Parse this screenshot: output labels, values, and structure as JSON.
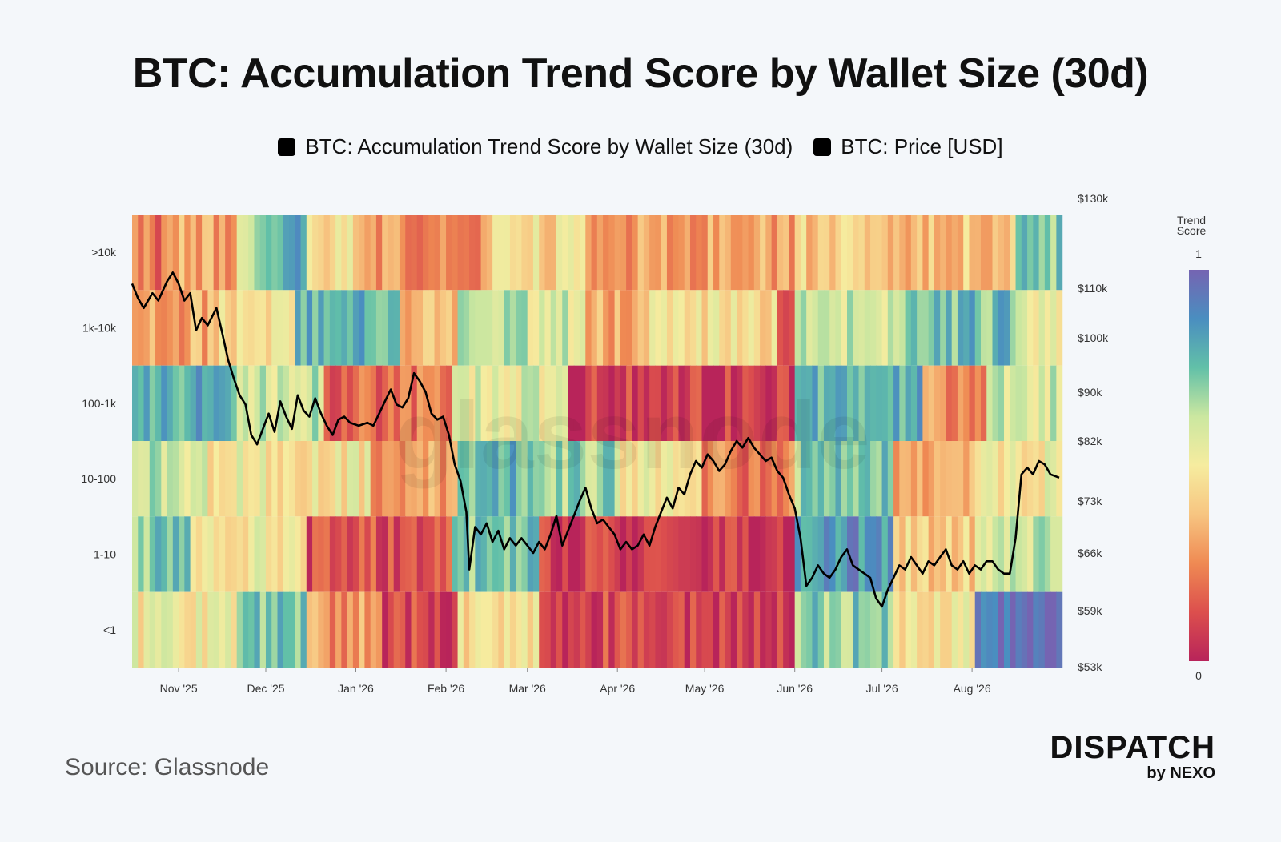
{
  "title": "BTC: Accumulation Trend Score by Wallet Size (30d)",
  "legend": [
    {
      "label": "BTC: Accumulation Trend Score by Wallet Size (30d)",
      "color": "#000000"
    },
    {
      "label": "BTC: Price [USD]",
      "color": "#000000"
    }
  ],
  "watermark": "glassnode",
  "source": "Source: Glassnode",
  "brand": {
    "main": "DISPATCH",
    "sub": "by NEXO"
  },
  "chart_data": {
    "type": "heatmap",
    "rows": [
      ">10k",
      "1k-10k",
      "100-1k",
      "10-100",
      "1-10",
      "<1"
    ],
    "x_ticks": [
      "Nov '25",
      "Dec '25",
      "Jan '26",
      "Feb '26",
      "Mar '26",
      "Apr '26",
      "May '26",
      "Jun '26",
      "Jul '26",
      "Aug '26"
    ],
    "start_date": "2025-10-16",
    "end_date": "2026-08-31",
    "right_axis": {
      "label": "BTC: Price [USD]",
      "ticks": [
        {
          "label": "$130k",
          "value": 130000
        },
        {
          "label": "$110k",
          "value": 110000
        },
        {
          "label": "$100k",
          "value": 100000
        },
        {
          "label": "$90k",
          "value": 90000
        },
        {
          "label": "$82k",
          "value": 82000
        },
        {
          "label": "$73k",
          "value": 73000
        },
        {
          "label": "$66k",
          "value": 66000
        },
        {
          "label": "$59k",
          "value": 59000
        },
        {
          "label": "$53k",
          "value": 53000
        }
      ]
    },
    "colorbar": {
      "title": [
        "Trend",
        "Score"
      ],
      "max_label": "1",
      "min_label": "0",
      "range": [
        0,
        1
      ]
    },
    "colorscale": [
      "#b8245a",
      "#dc4f4d",
      "#ef8a53",
      "#f7c581",
      "#f6ec9f",
      "#cbe7a0",
      "#62c0a8",
      "#4a8ec0",
      "#7564b2"
    ],
    "score_segments": [
      [
        {
          "from": "2025-10-16",
          "to": "2025-10-31",
          "score": 0.22
        },
        {
          "from": "2025-10-31",
          "to": "2025-11-20",
          "score": 0.32
        },
        {
          "from": "2025-11-20",
          "to": "2025-12-01",
          "score": 0.62
        },
        {
          "from": "2025-12-01",
          "to": "2025-12-15",
          "score": 0.82
        },
        {
          "from": "2025-12-15",
          "to": "2026-01-01",
          "score": 0.48
        },
        {
          "from": "2026-01-01",
          "to": "2026-01-20",
          "score": 0.3
        },
        {
          "from": "2026-01-20",
          "to": "2026-02-15",
          "score": 0.22
        },
        {
          "from": "2026-02-15",
          "to": "2026-03-20",
          "score": 0.45
        },
        {
          "from": "2026-03-20",
          "to": "2026-04-20",
          "score": 0.28
        },
        {
          "from": "2026-04-20",
          "to": "2026-05-31",
          "score": 0.32
        },
        {
          "from": "2026-05-31",
          "to": "2026-06-25",
          "score": 0.4
        },
        {
          "from": "2026-06-25",
          "to": "2026-08-15",
          "score": 0.38
        },
        {
          "from": "2026-08-15",
          "to": "2026-08-31",
          "score": 0.7
        }
      ],
      [
        {
          "from": "2025-10-16",
          "to": "2025-11-10",
          "score": 0.32
        },
        {
          "from": "2025-11-10",
          "to": "2025-12-10",
          "score": 0.45
        },
        {
          "from": "2025-12-10",
          "to": "2026-01-15",
          "score": 0.78
        },
        {
          "from": "2026-01-15",
          "to": "2026-02-05",
          "score": 0.35
        },
        {
          "from": "2026-02-05",
          "to": "2026-03-20",
          "score": 0.6
        },
        {
          "from": "2026-03-20",
          "to": "2026-04-10",
          "score": 0.32
        },
        {
          "from": "2026-04-10",
          "to": "2026-05-25",
          "score": 0.45
        },
        {
          "from": "2026-05-25",
          "to": "2026-06-01",
          "score": 0.08
        },
        {
          "from": "2026-06-01",
          "to": "2026-07-10",
          "score": 0.62
        },
        {
          "from": "2026-07-10",
          "to": "2026-08-15",
          "score": 0.75
        },
        {
          "from": "2026-08-15",
          "to": "2026-08-31",
          "score": 0.55
        }
      ],
      [
        {
          "from": "2025-10-16",
          "to": "2025-11-20",
          "score": 0.78
        },
        {
          "from": "2025-11-20",
          "to": "2025-12-20",
          "score": 0.62
        },
        {
          "from": "2025-12-20",
          "to": "2026-01-20",
          "score": 0.18
        },
        {
          "from": "2026-01-20",
          "to": "2026-02-03",
          "score": 0.22
        },
        {
          "from": "2026-02-03",
          "to": "2026-03-15",
          "score": 0.55
        },
        {
          "from": "2026-03-15",
          "to": "2026-05-31",
          "score": 0.08
        },
        {
          "from": "2026-05-31",
          "to": "2026-07-15",
          "score": 0.78
        },
        {
          "from": "2026-07-15",
          "to": "2026-08-05",
          "score": 0.28
        },
        {
          "from": "2026-08-05",
          "to": "2026-08-31",
          "score": 0.6
        }
      ],
      [
        {
          "from": "2025-10-16",
          "to": "2025-11-10",
          "score": 0.62
        },
        {
          "from": "2025-11-10",
          "to": "2025-12-05",
          "score": 0.5
        },
        {
          "from": "2025-12-05",
          "to": "2026-01-05",
          "score": 0.48
        },
        {
          "from": "2026-01-05",
          "to": "2026-02-05",
          "score": 0.3
        },
        {
          "from": "2026-02-05",
          "to": "2026-03-05",
          "score": 0.78
        },
        {
          "from": "2026-03-05",
          "to": "2026-04-01",
          "score": 0.68
        },
        {
          "from": "2026-04-01",
          "to": "2026-04-30",
          "score": 0.48
        },
        {
          "from": "2026-04-30",
          "to": "2026-05-31",
          "score": 0.22
        },
        {
          "from": "2026-05-31",
          "to": "2026-07-05",
          "score": 0.72
        },
        {
          "from": "2026-07-05",
          "to": "2026-08-01",
          "score": 0.3
        },
        {
          "from": "2026-08-01",
          "to": "2026-08-31",
          "score": 0.52
        }
      ],
      [
        {
          "from": "2025-10-16",
          "to": "2025-11-05",
          "score": 0.72
        },
        {
          "from": "2025-11-05",
          "to": "2025-12-15",
          "score": 0.5
        },
        {
          "from": "2025-12-15",
          "to": "2026-02-03",
          "score": 0.12
        },
        {
          "from": "2026-02-03",
          "to": "2026-03-05",
          "score": 0.72
        },
        {
          "from": "2026-03-05",
          "to": "2026-05-31",
          "score": 0.06
        },
        {
          "from": "2026-05-31",
          "to": "2026-07-05",
          "score": 0.85
        },
        {
          "from": "2026-07-05",
          "to": "2026-08-01",
          "score": 0.42
        },
        {
          "from": "2026-08-01",
          "to": "2026-08-31",
          "score": 0.6
        }
      ],
      [
        {
          "from": "2025-10-16",
          "to": "2025-11-20",
          "score": 0.5
        },
        {
          "from": "2025-11-20",
          "to": "2025-12-15",
          "score": 0.75
        },
        {
          "from": "2025-12-15",
          "to": "2026-01-10",
          "score": 0.28
        },
        {
          "from": "2026-01-10",
          "to": "2026-02-05",
          "score": 0.1
        },
        {
          "from": "2026-02-05",
          "to": "2026-03-05",
          "score": 0.45
        },
        {
          "from": "2026-03-05",
          "to": "2026-06-01",
          "score": 0.1
        },
        {
          "from": "2026-06-01",
          "to": "2026-07-05",
          "score": 0.7
        },
        {
          "from": "2026-07-05",
          "to": "2026-08-01",
          "score": 0.5
        },
        {
          "from": "2026-08-01",
          "to": "2026-08-31",
          "score": 0.98
        }
      ]
    ],
    "price_series": [
      {
        "date": "2025-10-16",
        "price": 111000
      },
      {
        "date": "2025-10-18",
        "price": 108000
      },
      {
        "date": "2025-10-20",
        "price": 106000
      },
      {
        "date": "2025-10-23",
        "price": 109000
      },
      {
        "date": "2025-10-25",
        "price": 107500
      },
      {
        "date": "2025-10-28",
        "price": 111500
      },
      {
        "date": "2025-10-30",
        "price": 113500
      },
      {
        "date": "2025-11-01",
        "price": 111000
      },
      {
        "date": "2025-11-03",
        "price": 107500
      },
      {
        "date": "2025-11-05",
        "price": 109000
      },
      {
        "date": "2025-11-07",
        "price": 101500
      },
      {
        "date": "2025-11-09",
        "price": 104000
      },
      {
        "date": "2025-11-11",
        "price": 102500
      },
      {
        "date": "2025-11-14",
        "price": 106000
      },
      {
        "date": "2025-11-16",
        "price": 101000
      },
      {
        "date": "2025-11-18",
        "price": 96000
      },
      {
        "date": "2025-11-20",
        "price": 92500
      },
      {
        "date": "2025-11-22",
        "price": 89500
      },
      {
        "date": "2025-11-24",
        "price": 88000
      },
      {
        "date": "2025-11-26",
        "price": 83000
      },
      {
        "date": "2025-11-28",
        "price": 81500
      },
      {
        "date": "2025-11-30",
        "price": 84000
      },
      {
        "date": "2025-12-02",
        "price": 86500
      },
      {
        "date": "2025-12-04",
        "price": 83500
      },
      {
        "date": "2025-12-06",
        "price": 88500
      },
      {
        "date": "2025-12-08",
        "price": 86000
      },
      {
        "date": "2025-12-10",
        "price": 84000
      },
      {
        "date": "2025-12-12",
        "price": 89500
      },
      {
        "date": "2025-12-14",
        "price": 87000
      },
      {
        "date": "2025-12-16",
        "price": 86000
      },
      {
        "date": "2025-12-18",
        "price": 89000
      },
      {
        "date": "2025-12-20",
        "price": 86500
      },
      {
        "date": "2025-12-22",
        "price": 84500
      },
      {
        "date": "2025-12-24",
        "price": 83000
      },
      {
        "date": "2025-12-26",
        "price": 85500
      },
      {
        "date": "2025-12-28",
        "price": 86000
      },
      {
        "date": "2025-12-30",
        "price": 85000
      },
      {
        "date": "2026-01-02",
        "price": 84500
      },
      {
        "date": "2026-01-05",
        "price": 85000
      },
      {
        "date": "2026-01-07",
        "price": 84500
      },
      {
        "date": "2026-01-09",
        "price": 86500
      },
      {
        "date": "2026-01-11",
        "price": 88500
      },
      {
        "date": "2026-01-13",
        "price": 90500
      },
      {
        "date": "2026-01-15",
        "price": 88000
      },
      {
        "date": "2026-01-17",
        "price": 87500
      },
      {
        "date": "2026-01-19",
        "price": 89000
      },
      {
        "date": "2026-01-21",
        "price": 93500
      },
      {
        "date": "2026-01-23",
        "price": 92000
      },
      {
        "date": "2026-01-25",
        "price": 90000
      },
      {
        "date": "2026-01-27",
        "price": 86500
      },
      {
        "date": "2026-01-29",
        "price": 85500
      },
      {
        "date": "2026-01-31",
        "price": 86000
      },
      {
        "date": "2026-02-02",
        "price": 83000
      },
      {
        "date": "2026-02-04",
        "price": 78500
      },
      {
        "date": "2026-02-06",
        "price": 76000
      },
      {
        "date": "2026-02-08",
        "price": 71500
      },
      {
        "date": "2026-02-09",
        "price": 64000
      },
      {
        "date": "2026-02-11",
        "price": 69500
      },
      {
        "date": "2026-02-13",
        "price": 68500
      },
      {
        "date": "2026-02-15",
        "price": 70000
      },
      {
        "date": "2026-02-17",
        "price": 67500
      },
      {
        "date": "2026-02-19",
        "price": 69000
      },
      {
        "date": "2026-02-21",
        "price": 66500
      },
      {
        "date": "2026-02-23",
        "price": 68000
      },
      {
        "date": "2026-02-25",
        "price": 67000
      },
      {
        "date": "2026-02-27",
        "price": 68000
      },
      {
        "date": "2026-03-01",
        "price": 67000
      },
      {
        "date": "2026-03-03",
        "price": 66000
      },
      {
        "date": "2026-03-05",
        "price": 67500
      },
      {
        "date": "2026-03-07",
        "price": 66500
      },
      {
        "date": "2026-03-09",
        "price": 68500
      },
      {
        "date": "2026-03-11",
        "price": 71000
      },
      {
        "date": "2026-03-13",
        "price": 67000
      },
      {
        "date": "2026-03-15",
        "price": 69000
      },
      {
        "date": "2026-03-17",
        "price": 71000
      },
      {
        "date": "2026-03-19",
        "price": 73000
      },
      {
        "date": "2026-03-21",
        "price": 75000
      },
      {
        "date": "2026-03-23",
        "price": 72000
      },
      {
        "date": "2026-03-25",
        "price": 70000
      },
      {
        "date": "2026-03-27",
        "price": 70500
      },
      {
        "date": "2026-03-29",
        "price": 69500
      },
      {
        "date": "2026-03-31",
        "price": 68500
      },
      {
        "date": "2026-04-02",
        "price": 66500
      },
      {
        "date": "2026-04-04",
        "price": 67500
      },
      {
        "date": "2026-04-06",
        "price": 66500
      },
      {
        "date": "2026-04-08",
        "price": 67000
      },
      {
        "date": "2026-04-10",
        "price": 68500
      },
      {
        "date": "2026-04-12",
        "price": 67000
      },
      {
        "date": "2026-04-14",
        "price": 69500
      },
      {
        "date": "2026-04-16",
        "price": 71500
      },
      {
        "date": "2026-04-18",
        "price": 73500
      },
      {
        "date": "2026-04-20",
        "price": 72000
      },
      {
        "date": "2026-04-22",
        "price": 75000
      },
      {
        "date": "2026-04-24",
        "price": 74000
      },
      {
        "date": "2026-04-26",
        "price": 77000
      },
      {
        "date": "2026-04-28",
        "price": 79000
      },
      {
        "date": "2026-04-30",
        "price": 78000
      },
      {
        "date": "2026-05-02",
        "price": 80000
      },
      {
        "date": "2026-05-04",
        "price": 79000
      },
      {
        "date": "2026-05-06",
        "price": 77500
      },
      {
        "date": "2026-05-08",
        "price": 78500
      },
      {
        "date": "2026-05-10",
        "price": 80500
      },
      {
        "date": "2026-05-12",
        "price": 82000
      },
      {
        "date": "2026-05-14",
        "price": 81000
      },
      {
        "date": "2026-05-16",
        "price": 82500
      },
      {
        "date": "2026-05-18",
        "price": 81000
      },
      {
        "date": "2026-05-20",
        "price": 80000
      },
      {
        "date": "2026-05-22",
        "price": 79000
      },
      {
        "date": "2026-05-24",
        "price": 79500
      },
      {
        "date": "2026-05-26",
        "price": 77500
      },
      {
        "date": "2026-05-28",
        "price": 76500
      },
      {
        "date": "2026-05-30",
        "price": 74000
      },
      {
        "date": "2026-06-01",
        "price": 72000
      },
      {
        "date": "2026-06-03",
        "price": 68000
      },
      {
        "date": "2026-06-05",
        "price": 62000
      },
      {
        "date": "2026-06-07",
        "price": 63000
      },
      {
        "date": "2026-06-09",
        "price": 64500
      },
      {
        "date": "2026-06-11",
        "price": 63500
      },
      {
        "date": "2026-06-13",
        "price": 63000
      },
      {
        "date": "2026-06-15",
        "price": 64000
      },
      {
        "date": "2026-06-17",
        "price": 65500
      },
      {
        "date": "2026-06-19",
        "price": 66500
      },
      {
        "date": "2026-06-21",
        "price": 64500
      },
      {
        "date": "2026-06-23",
        "price": 64000
      },
      {
        "date": "2026-06-25",
        "price": 63500
      },
      {
        "date": "2026-06-27",
        "price": 63000
      },
      {
        "date": "2026-06-29",
        "price": 60500
      },
      {
        "date": "2026-07-01",
        "price": 59500
      },
      {
        "date": "2026-07-03",
        "price": 61500
      },
      {
        "date": "2026-07-05",
        "price": 63000
      },
      {
        "date": "2026-07-07",
        "price": 64500
      },
      {
        "date": "2026-07-09",
        "price": 64000
      },
      {
        "date": "2026-07-11",
        "price": 65500
      },
      {
        "date": "2026-07-13",
        "price": 64500
      },
      {
        "date": "2026-07-15",
        "price": 63500
      },
      {
        "date": "2026-07-17",
        "price": 65000
      },
      {
        "date": "2026-07-19",
        "price": 64500
      },
      {
        "date": "2026-07-21",
        "price": 65500
      },
      {
        "date": "2026-07-23",
        "price": 66500
      },
      {
        "date": "2026-07-25",
        "price": 64500
      },
      {
        "date": "2026-07-27",
        "price": 64000
      },
      {
        "date": "2026-07-29",
        "price": 65000
      },
      {
        "date": "2026-07-31",
        "price": 63500
      },
      {
        "date": "2026-08-02",
        "price": 64500
      },
      {
        "date": "2026-08-04",
        "price": 64000
      },
      {
        "date": "2026-08-06",
        "price": 65000
      },
      {
        "date": "2026-08-08",
        "price": 65000
      },
      {
        "date": "2026-08-10",
        "price": 64000
      },
      {
        "date": "2026-08-12",
        "price": 63500
      },
      {
        "date": "2026-08-14",
        "price": 63500
      },
      {
        "date": "2026-08-16",
        "price": 68000
      },
      {
        "date": "2026-08-18",
        "price": 77000
      },
      {
        "date": "2026-08-20",
        "price": 78000
      },
      {
        "date": "2026-08-22",
        "price": 77000
      },
      {
        "date": "2026-08-24",
        "price": 79000
      },
      {
        "date": "2026-08-26",
        "price": 78500
      },
      {
        "date": "2026-08-28",
        "price": 77000
      },
      {
        "date": "2026-08-31",
        "price": 76500
      }
    ]
  }
}
